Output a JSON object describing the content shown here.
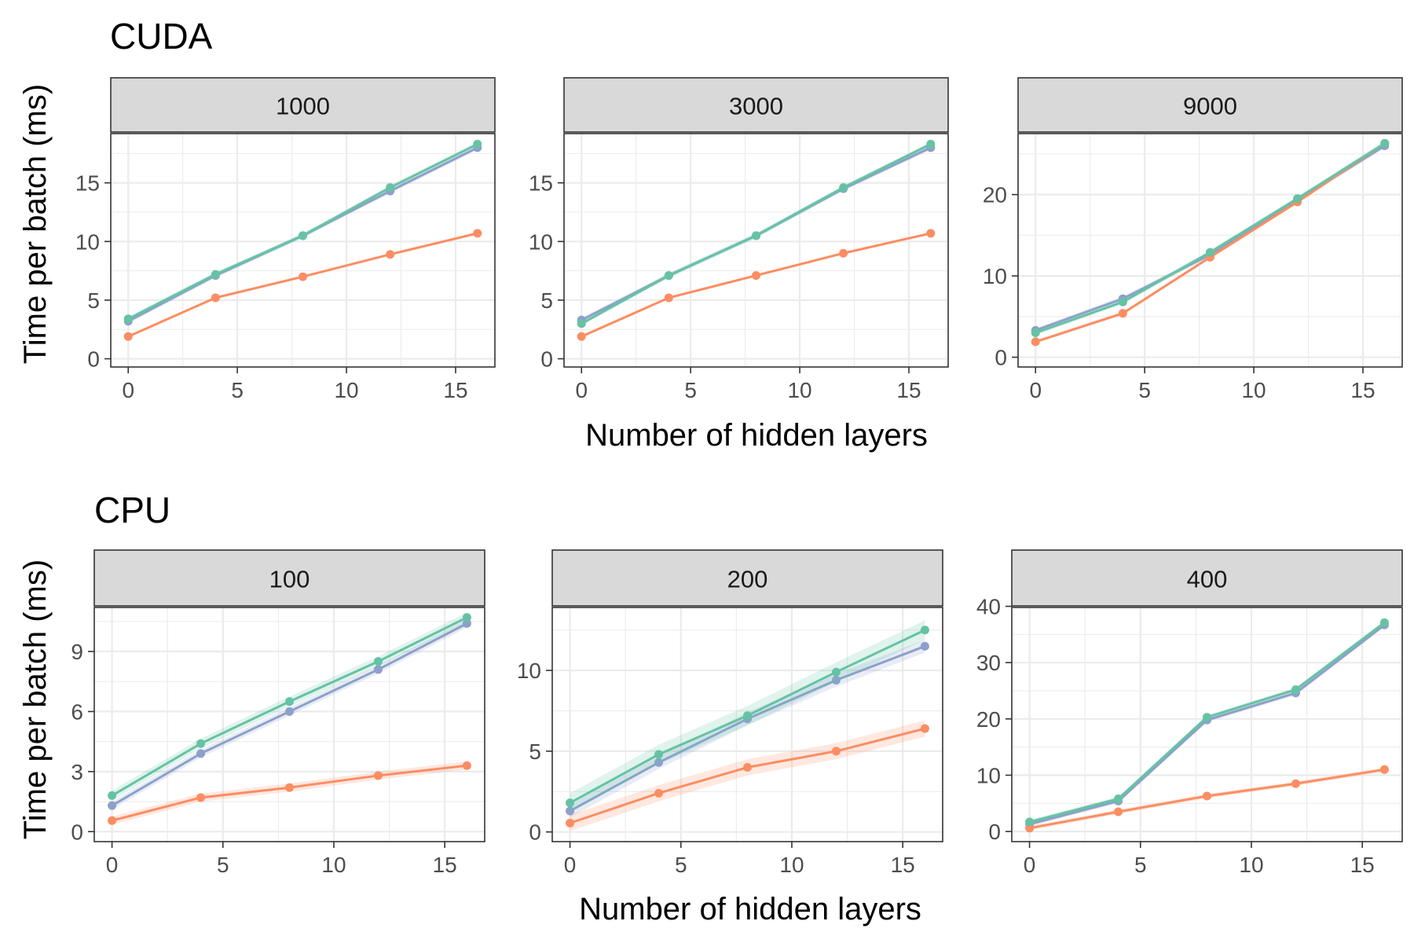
{
  "colors": {
    "green": "#66c2a5",
    "orange": "#fc8d62",
    "purple": "#8da0cb"
  },
  "x_axis_label": "Number of hidden layers",
  "y_axis_label": "Time per batch (ms)",
  "sections": [
    {
      "title": "CUDA"
    },
    {
      "title": "CPU"
    }
  ],
  "chart_data": [
    {
      "type": "line",
      "section": "CUDA",
      "panel": "1000",
      "x": [
        0,
        4,
        8,
        12,
        16
      ],
      "xlim": [
        -0.8,
        16.8
      ],
      "ylim": [
        -0.7,
        19.2
      ],
      "xticks": [
        0,
        5,
        10,
        15
      ],
      "yticks": [
        0,
        5,
        10,
        15
      ],
      "series": [
        {
          "color": "purple",
          "values": [
            3.2,
            7.1,
            10.5,
            14.3,
            18.0
          ],
          "band": 0.2
        },
        {
          "color": "green",
          "values": [
            3.4,
            7.2,
            10.5,
            14.6,
            18.3
          ],
          "band": 0.2
        },
        {
          "color": "orange",
          "values": [
            1.9,
            5.2,
            7.0,
            8.9,
            10.7
          ],
          "band": 0.1
        }
      ]
    },
    {
      "type": "line",
      "section": "CUDA",
      "panel": "3000",
      "x": [
        0,
        4,
        8,
        12,
        16
      ],
      "xlim": [
        -0.8,
        16.8
      ],
      "ylim": [
        -0.7,
        19.2
      ],
      "xticks": [
        0,
        5,
        10,
        15
      ],
      "yticks": [
        0,
        5,
        10,
        15
      ],
      "series": [
        {
          "color": "purple",
          "values": [
            3.3,
            7.1,
            10.5,
            14.5,
            18.0
          ],
          "band": 0.2
        },
        {
          "color": "green",
          "values": [
            3.0,
            7.1,
            10.5,
            14.6,
            18.3
          ],
          "band": 0.2
        },
        {
          "color": "orange",
          "values": [
            1.9,
            5.2,
            7.1,
            9.0,
            10.7
          ],
          "band": 0.1
        }
      ]
    },
    {
      "type": "line",
      "section": "CUDA",
      "panel": "9000",
      "x": [
        0,
        4,
        8,
        12,
        16
      ],
      "xlim": [
        -0.8,
        16.8
      ],
      "ylim": [
        -1.2,
        27.5
      ],
      "xticks": [
        0,
        5,
        10,
        15
      ],
      "yticks": [
        0,
        10,
        20
      ],
      "series": [
        {
          "color": "purple",
          "values": [
            3.3,
            7.2,
            12.6,
            19.3,
            26.0
          ],
          "band": 0.3
        },
        {
          "color": "green",
          "values": [
            3.0,
            6.8,
            12.9,
            19.5,
            26.3
          ],
          "band": 0.3
        },
        {
          "color": "orange",
          "values": [
            1.9,
            5.4,
            12.3,
            19.1,
            26.3
          ],
          "band": 0.2
        }
      ]
    },
    {
      "type": "line",
      "section": "CPU",
      "panel": "100",
      "x": [
        0,
        4,
        8,
        12,
        16
      ],
      "xlim": [
        -0.8,
        16.8
      ],
      "ylim": [
        -0.5,
        11.2
      ],
      "xticks": [
        0,
        5,
        10,
        15
      ],
      "yticks": [
        0,
        3,
        6,
        9
      ],
      "series": [
        {
          "color": "purple",
          "values": [
            1.3,
            3.9,
            6.0,
            8.1,
            10.4
          ],
          "band": 0.2
        },
        {
          "color": "green",
          "values": [
            1.8,
            4.4,
            6.5,
            8.5,
            10.7
          ],
          "band": 0.25
        },
        {
          "color": "orange",
          "values": [
            0.55,
            1.7,
            2.2,
            2.8,
            3.3
          ],
          "band": 0.2
        }
      ]
    },
    {
      "type": "line",
      "section": "CPU",
      "panel": "200",
      "x": [
        0,
        4,
        8,
        12,
        16
      ],
      "xlim": [
        -0.8,
        16.8
      ],
      "ylim": [
        -0.6,
        13.9
      ],
      "xticks": [
        0,
        5,
        10,
        15
      ],
      "yticks": [
        0,
        5,
        10
      ],
      "series": [
        {
          "color": "purple",
          "values": [
            1.3,
            4.3,
            7.0,
            9.4,
            11.5
          ],
          "band": 0.4
        },
        {
          "color": "green",
          "values": [
            1.8,
            4.8,
            7.2,
            9.9,
            12.5
          ],
          "band": 0.6
        },
        {
          "color": "orange",
          "values": [
            0.55,
            2.4,
            4.0,
            5.0,
            6.4
          ],
          "band": 0.5
        }
      ]
    },
    {
      "type": "line",
      "section": "CPU",
      "panel": "400",
      "x": [
        0,
        4,
        8,
        12,
        16
      ],
      "xlim": [
        -0.8,
        16.8
      ],
      "ylim": [
        -1.8,
        39.8
      ],
      "xticks": [
        0,
        5,
        10,
        15
      ],
      "yticks": [
        0,
        10,
        20,
        30,
        40
      ],
      "series": [
        {
          "color": "purple",
          "values": [
            1.3,
            5.4,
            19.8,
            24.6,
            36.7
          ],
          "band": 0.4
        },
        {
          "color": "green",
          "values": [
            1.7,
            5.8,
            20.3,
            25.2,
            37.1
          ],
          "band": 0.4
        },
        {
          "color": "orange",
          "values": [
            0.6,
            3.5,
            6.3,
            8.5,
            11.0
          ],
          "band": 0.4
        }
      ]
    }
  ]
}
